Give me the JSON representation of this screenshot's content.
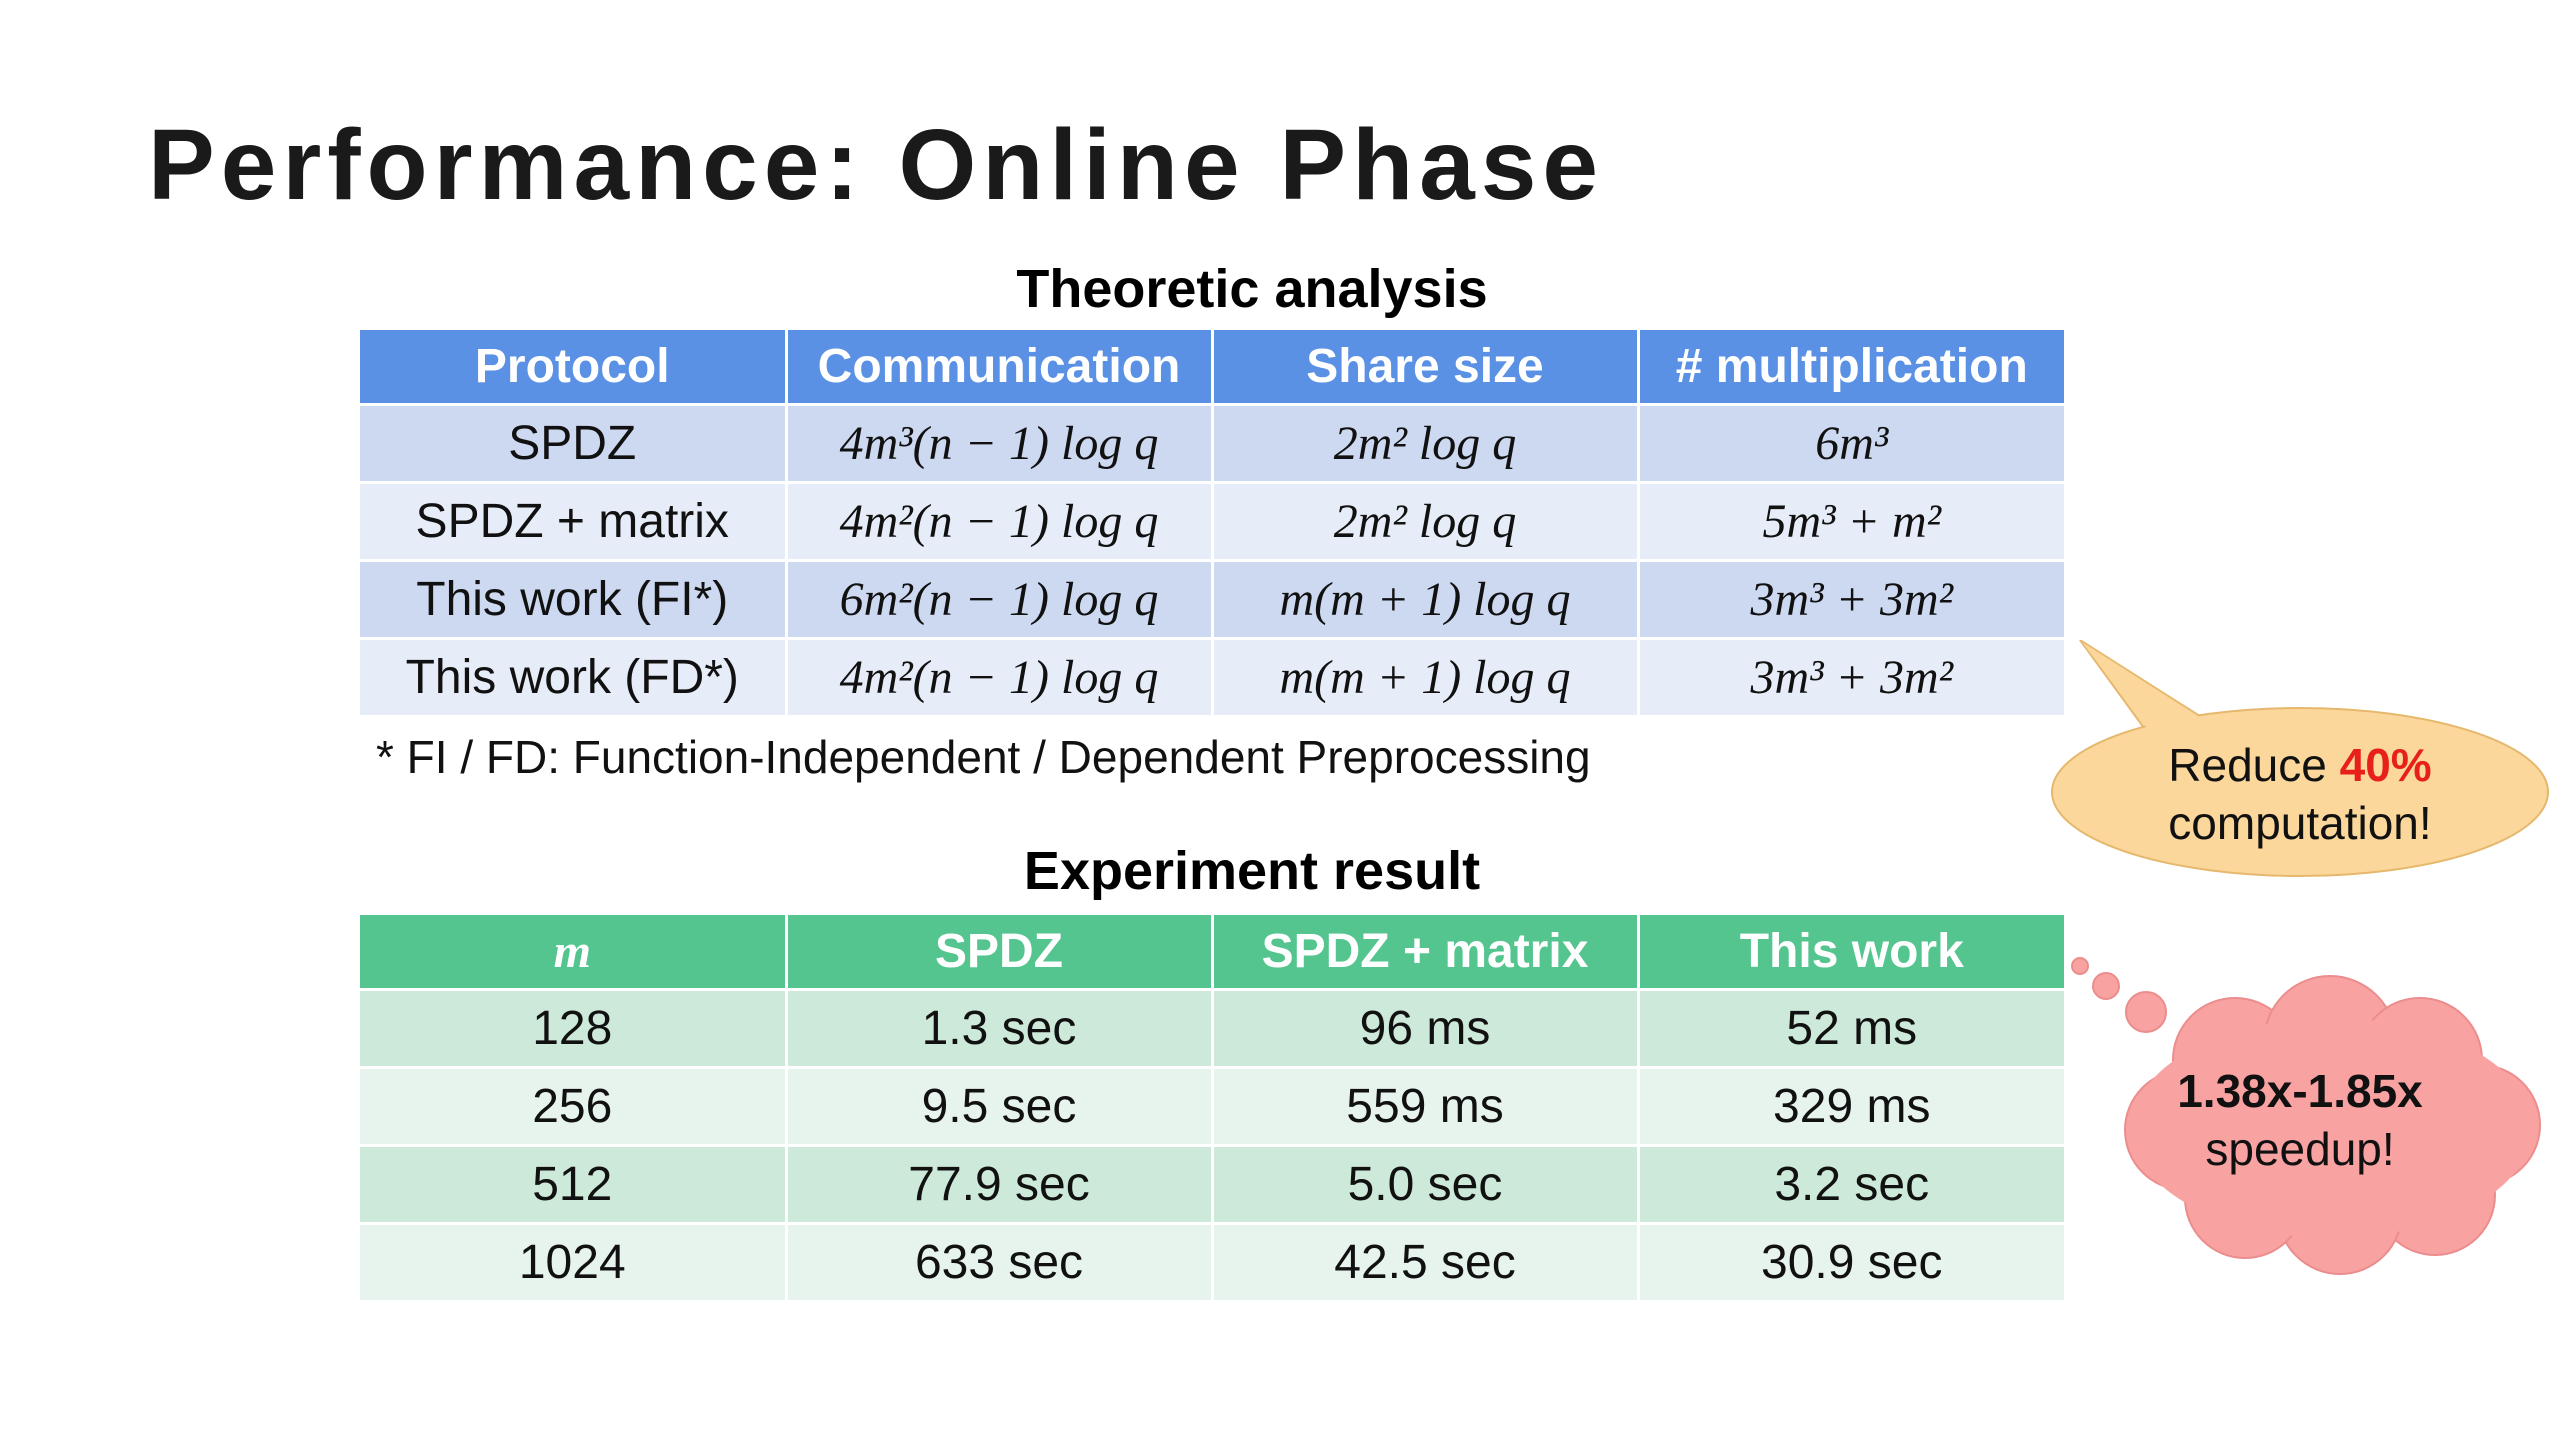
{
  "title": "Performance: Online Phase",
  "theory": {
    "caption": "Theoretic analysis",
    "headers": [
      "Protocol",
      "Communication",
      "Share size",
      "# multiplication"
    ],
    "rows": [
      [
        "SPDZ",
        "4m³(n − 1) log q",
        "2m² log q",
        "6m³"
      ],
      [
        "SPDZ + matrix",
        "4m²(n − 1) log q",
        "2m² log q",
        "5m³ + m²"
      ],
      [
        "This work (FI*)",
        "6m²(n − 1) log q",
        "m(m + 1) log q",
        "3m³ + 3m²"
      ],
      [
        "This work (FD*)",
        "4m²(n − 1) log q",
        "m(m + 1) log q",
        "3m³ + 3m²"
      ]
    ],
    "footnote": "* FI / FD: Function-Independent / Dependent Preprocessing"
  },
  "experiment": {
    "caption": "Experiment result",
    "headers": [
      "m",
      "SPDZ",
      "SPDZ + matrix",
      "This work"
    ],
    "rows": [
      [
        "128",
        "1.3 sec",
        "96 ms",
        "52 ms"
      ],
      [
        "256",
        "9.5 sec",
        "559 ms",
        "329 ms"
      ],
      [
        "512",
        "77.9 sec",
        "5.0 sec",
        "3.2 sec"
      ],
      [
        "1024",
        "633 sec",
        "42.5 sec",
        "30.9 sec"
      ]
    ]
  },
  "callout_reduce": {
    "prefix": "Reduce ",
    "highlight": "40%",
    "suffix": "computation!"
  },
  "callout_speedup": {
    "line1": "1.38x-1.85x",
    "line2": "speedup!"
  },
  "colors": {
    "theory_header": "#5b91e5",
    "experiment_header": "#54c58f",
    "bubble_fill": "#fbd79b",
    "cloud_fill": "#f8a2a2",
    "highlight_red": "#e8201a"
  }
}
